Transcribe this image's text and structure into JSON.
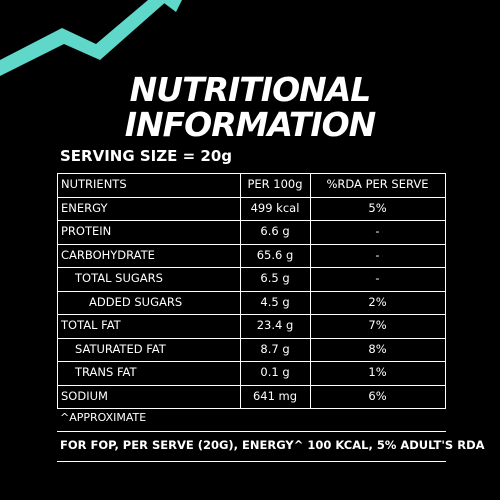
{
  "title": [
    "NUTRITIONAL",
    "INFORMATION"
  ],
  "serving_size": "SERVING SIZE = 20g",
  "table": {
    "header": [
      "NUTRIENTS",
      "PER 100g",
      "%RDA PER SERVE"
    ],
    "rows": [
      [
        "ENERGY",
        "499 kcal",
        "5%"
      ],
      [
        "PROTEIN",
        "6.6 g",
        "-"
      ],
      [
        "CARBOHYDRATE",
        "65.6 g",
        "-"
      ],
      [
        "TOTAL SUGARS",
        "6.5 g",
        "-"
      ],
      [
        "ADDED SUGARS",
        "4.5 g",
        "2%"
      ],
      [
        "TOTAL FAT",
        "23.4 g",
        "7%"
      ],
      [
        "SATURATED FAT",
        "8.7 g",
        "8%"
      ],
      [
        "TRANS FAT",
        "0.1 g",
        "1%"
      ],
      [
        "SODIUM",
        "641 mg",
        "6%"
      ]
    ]
  },
  "note": "^APPROXIMATE",
  "footer": "FOR FOP, PER SERVE (20G), ENERGY^ 100 KCAL, 5% ADULT'S RDA"
}
